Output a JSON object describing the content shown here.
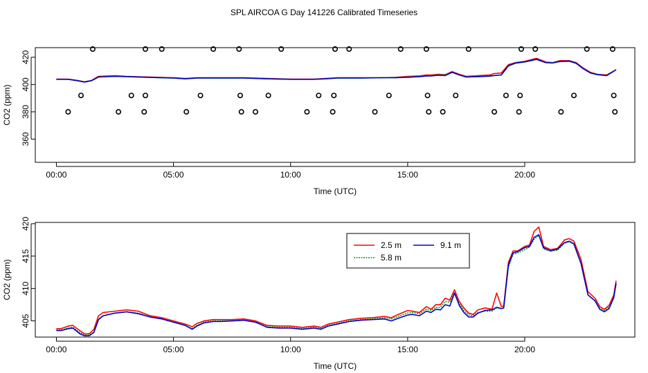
{
  "figure_title": "SPL AIRCOA G  Day 141226  Calibrated Timeseries",
  "chart_data": [
    {
      "type": "line",
      "xlabel": "Time (UTC)",
      "ylabel": "CO2 (ppm)",
      "xlim": [
        -0.9,
        24.7
      ],
      "ylim": [
        343,
        427
      ],
      "xticks": [
        0,
        5,
        10,
        15,
        20
      ],
      "xtick_labels": [
        "00:00",
        "05:00",
        "10:00",
        "15:00",
        "20:00"
      ],
      "yticks": [
        360,
        380,
        400,
        420
      ],
      "ytick_labels": [
        "360",
        "380",
        "400",
        "420"
      ],
      "grid": false,
      "series": [
        {
          "color": "#ff0000",
          "x": [
            0,
            0.5,
            0.9,
            1.2,
            1.5,
            1.8,
            2.5,
            3.0,
            4.0,
            5.0,
            5.5,
            6.0,
            7.0,
            8.0,
            9.0,
            10.0,
            10.5,
            11.0,
            11.5,
            12.0,
            13.0,
            14.0,
            14.5,
            15.0,
            15.5,
            15.8,
            16.0,
            16.3,
            16.6,
            16.9,
            17.2,
            17.5,
            18.0,
            18.5,
            18.7,
            19.0,
            19.3,
            19.6,
            20.0,
            20.5,
            20.9,
            21.2,
            21.5,
            21.9,
            22.2,
            22.5,
            22.8,
            23.1,
            23.5,
            23.9
          ],
          "values": [
            404,
            404,
            403,
            402,
            403,
            406,
            406.5,
            406,
            405.5,
            405,
            404.5,
            405,
            405,
            405,
            404.5,
            404,
            404,
            404,
            404.5,
            405,
            405,
            405,
            405.3,
            406,
            406.3,
            407,
            407,
            407.5,
            407.2,
            409.5,
            407.5,
            406,
            406.5,
            407,
            408,
            408.5,
            414.5,
            416,
            417,
            419.2,
            416.5,
            416,
            417.5,
            417.5,
            416,
            412,
            409,
            407.5,
            407,
            410.8
          ]
        },
        {
          "color": "#00cc00",
          "x": [
            0,
            0.5,
            0.9,
            1.2,
            1.5,
            1.8,
            2.5,
            3.0,
            4.0,
            5.0,
            5.5,
            6.0,
            7.0,
            8.0,
            9.0,
            10.0,
            10.5,
            11.0,
            11.5,
            12.0,
            13.0,
            14.0,
            14.5,
            15.0,
            15.5,
            15.8,
            16.0,
            16.3,
            16.6,
            16.9,
            17.2,
            17.5,
            18.0,
            18.5,
            18.7,
            19.0,
            19.3,
            19.6,
            20.0,
            20.5,
            20.9,
            21.2,
            21.5,
            21.9,
            22.2,
            22.5,
            22.8,
            23.1,
            23.5,
            23.9
          ],
          "values": [
            403.8,
            403.8,
            402.8,
            401.8,
            402.8,
            405.5,
            406,
            405.8,
            405.2,
            404.8,
            404.2,
            404.8,
            404.8,
            404.8,
            404.2,
            403.8,
            403.8,
            403.8,
            404.2,
            404.8,
            404.8,
            405,
            405,
            405.5,
            405.8,
            406.3,
            406.5,
            407,
            406.8,
            409,
            407,
            405.5,
            405.8,
            406,
            406.5,
            407,
            413.5,
            415.5,
            416.5,
            418.3,
            416,
            415.8,
            416.8,
            417,
            415.5,
            411.5,
            408.5,
            407.2,
            406.5,
            410.8
          ]
        },
        {
          "color": "#0000cc",
          "x": [
            0,
            0.5,
            0.9,
            1.2,
            1.5,
            1.8,
            2.5,
            3.0,
            4.0,
            5.0,
            5.5,
            6.0,
            7.0,
            8.0,
            9.0,
            10.0,
            10.5,
            11.0,
            11.5,
            12.0,
            13.0,
            14.0,
            14.5,
            15.0,
            15.5,
            15.8,
            16.0,
            16.3,
            16.6,
            16.9,
            17.2,
            17.5,
            18.0,
            18.5,
            18.7,
            19.0,
            19.3,
            19.6,
            20.0,
            20.5,
            20.9,
            21.2,
            21.5,
            21.9,
            22.2,
            22.5,
            22.8,
            23.1,
            23.5,
            23.9
          ],
          "values": [
            403.8,
            403.8,
            402.8,
            401.8,
            402.8,
            405.5,
            406,
            405.8,
            405.2,
            404.8,
            404.2,
            404.8,
            404.8,
            404.8,
            404.2,
            403.8,
            403.8,
            403.8,
            404.2,
            404.8,
            404.8,
            405,
            405,
            405.3,
            405.8,
            406.2,
            406.3,
            406.8,
            406.5,
            409,
            407,
            405.5,
            405.8,
            406.2,
            406.6,
            407,
            413.8,
            415.8,
            416.6,
            418.5,
            416,
            415.8,
            417,
            417.2,
            415.5,
            411.5,
            408.5,
            407.2,
            406.5,
            410.8
          ]
        }
      ],
      "points": {
        "x": [
          0.5,
          1.05,
          1.55,
          2.65,
          3.2,
          3.75,
          3.8,
          3.8,
          4.5,
          5.55,
          6.15,
          6.7,
          7.8,
          7.85,
          7.9,
          8.5,
          9.05,
          9.6,
          10.7,
          11.2,
          11.8,
          11.85,
          11.9,
          12.5,
          13.6,
          14.2,
          14.7,
          15.8,
          15.85,
          15.9,
          16.5,
          17.05,
          17.6,
          18.7,
          19.2,
          19.75,
          19.8,
          19.85,
          20.45,
          21.55,
          22.1,
          22.65,
          23.75,
          23.8,
          23.85
        ],
        "values": [
          380,
          392,
          426,
          380,
          392,
          380,
          392,
          426,
          426,
          380,
          392,
          426,
          426,
          392,
          380,
          380,
          392,
          426,
          380,
          392,
          380,
          392,
          426,
          426,
          380,
          392,
          426,
          426,
          392,
          380,
          380,
          392,
          426,
          380,
          392,
          380,
          392,
          426,
          426,
          380,
          392,
          426,
          426,
          392,
          380
        ]
      }
    },
    {
      "type": "line",
      "xlabel": "Time (UTC)",
      "ylabel": "CO2 (ppm)",
      "xlim": [
        -0.9,
        24.7
      ],
      "ylim": [
        402.5,
        420.2
      ],
      "xticks": [
        0,
        5,
        10,
        15,
        20
      ],
      "xtick_labels": [
        "00:00",
        "05:00",
        "10:00",
        "15:00",
        "20:00"
      ],
      "yticks": [
        405,
        410,
        415,
        420
      ],
      "ytick_labels": [
        "405",
        "410",
        "415",
        "420"
      ],
      "grid": false,
      "legend_position": "top-right",
      "series": [
        {
          "name": "2.5 m",
          "color": "#ff0000",
          "x": [
            0,
            0.2,
            0.5,
            0.7,
            1.0,
            1.2,
            1.4,
            1.6,
            1.8,
            2.0,
            2.5,
            3.0,
            3.5,
            4.0,
            4.5,
            5.0,
            5.5,
            5.8,
            6.0,
            6.3,
            6.7,
            7.0,
            7.5,
            8.0,
            8.5,
            9.0,
            9.5,
            10.0,
            10.5,
            11.0,
            11.3,
            11.6,
            12.0,
            12.5,
            13.0,
            13.5,
            14.0,
            14.3,
            14.6,
            15.0,
            15.2,
            15.5,
            15.8,
            16.0,
            16.2,
            16.4,
            16.6,
            16.8,
            17.0,
            17.2,
            17.4,
            17.6,
            17.8,
            18.0,
            18.3,
            18.6,
            18.8,
            19.0,
            19.1,
            19.3,
            19.5,
            19.7,
            20.0,
            20.2,
            20.4,
            20.6,
            20.8,
            21.1,
            21.4,
            21.7,
            21.9,
            22.1,
            22.4,
            22.7,
            23.0,
            23.2,
            23.4,
            23.6,
            23.8,
            23.9
          ],
          "values": [
            403.8,
            403.8,
            404.2,
            404.3,
            403.5,
            403,
            403,
            403.7,
            405.8,
            406.3,
            406.5,
            406.7,
            406.5,
            405.8,
            405.5,
            405,
            404.5,
            404.1,
            404.6,
            405,
            405.2,
            405.2,
            405.2,
            405.3,
            405,
            404.3,
            404.2,
            404.2,
            404,
            404.2,
            404,
            404.5,
            404.8,
            405.2,
            405.4,
            405.5,
            405.7,
            405.5,
            406,
            406.6,
            406.5,
            406.3,
            407.2,
            406.8,
            407.5,
            407.5,
            408.5,
            408.2,
            409.8,
            408,
            407,
            406.2,
            406,
            406.7,
            407,
            406.8,
            409.3,
            407.2,
            407.3,
            414,
            415.8,
            415.8,
            416.5,
            416.7,
            418.8,
            419.5,
            416.5,
            416,
            416.2,
            417.5,
            417.7,
            417.3,
            414.5,
            409.5,
            408.5,
            407.2,
            406.8,
            407.4,
            409,
            411.2
          ]
        },
        {
          "name": "5.8 m",
          "color": "#009900",
          "dashed": true,
          "x": [
            0,
            0.2,
            0.5,
            0.7,
            1.0,
            1.2,
            1.4,
            1.6,
            1.8,
            2.0,
            2.5,
            3.0,
            3.5,
            4.0,
            4.5,
            5.0,
            5.5,
            5.8,
            6.0,
            6.3,
            6.7,
            7.0,
            7.5,
            8.0,
            8.5,
            9.0,
            9.5,
            10.0,
            10.5,
            11.0,
            11.3,
            11.6,
            12.0,
            12.5,
            13.0,
            13.5,
            14.0,
            14.3,
            14.6,
            15.0,
            15.2,
            15.5,
            15.8,
            16.0,
            16.2,
            16.4,
            16.6,
            16.8,
            17.0,
            17.2,
            17.4,
            17.6,
            17.8,
            18.0,
            18.3,
            18.6,
            18.8,
            19.0,
            19.1,
            19.3,
            19.5,
            19.7,
            20.0,
            20.2,
            20.4,
            20.6,
            20.8,
            21.1,
            21.4,
            21.7,
            21.9,
            22.1,
            22.4,
            22.7,
            23.0,
            23.2,
            23.4,
            23.6,
            23.8,
            23.9
          ],
          "values": [
            403.6,
            403.6,
            403.9,
            404,
            403.2,
            402.8,
            402.8,
            403.3,
            405.3,
            405.8,
            406.2,
            406.4,
            406.2,
            405.6,
            405.3,
            404.8,
            404.3,
            403.8,
            404.3,
            404.8,
            405,
            405,
            405,
            405.1,
            404.8,
            404.1,
            404,
            404,
            403.8,
            404,
            403.8,
            404.3,
            404.6,
            405,
            405.2,
            405.3,
            405.5,
            405.3,
            405.7,
            406.2,
            406.3,
            406.1,
            406.8,
            406.6,
            407.1,
            407.1,
            408,
            407.9,
            409.3,
            407.7,
            406.6,
            405.9,
            405.8,
            406.3,
            406.5,
            406.5,
            407,
            406.9,
            407,
            413.2,
            415.3,
            415.5,
            416,
            416.4,
            417.6,
            418.2,
            416.1,
            415.8,
            415.9,
            417,
            417.2,
            416.8,
            413.8,
            409,
            408.1,
            406.9,
            406.6,
            407.1,
            408.7,
            410.8
          ]
        },
        {
          "name": "9.1 m",
          "color": "#0000cc",
          "x": [
            0,
            0.2,
            0.5,
            0.7,
            1.0,
            1.2,
            1.4,
            1.6,
            1.8,
            2.0,
            2.5,
            3.0,
            3.5,
            4.0,
            4.5,
            5.0,
            5.5,
            5.8,
            6.0,
            6.3,
            6.7,
            7.0,
            7.5,
            8.0,
            8.5,
            9.0,
            9.5,
            10.0,
            10.5,
            11.0,
            11.3,
            11.6,
            12.0,
            12.5,
            13.0,
            13.5,
            14.0,
            14.3,
            14.6,
            15.0,
            15.2,
            15.5,
            15.8,
            16.0,
            16.2,
            16.4,
            16.6,
            16.8,
            17.0,
            17.2,
            17.4,
            17.6,
            17.8,
            18.0,
            18.3,
            18.6,
            18.8,
            19.0,
            19.1,
            19.3,
            19.5,
            19.7,
            20.0,
            20.2,
            20.4,
            20.6,
            20.8,
            21.1,
            21.4,
            21.7,
            21.9,
            22.1,
            22.4,
            22.7,
            23.0,
            23.2,
            23.4,
            23.6,
            23.8,
            23.9
          ],
          "values": [
            403.5,
            403.5,
            403.8,
            403.9,
            403,
            402.7,
            402.7,
            403.2,
            405.2,
            405.8,
            406.2,
            406.4,
            406.1,
            405.6,
            405.3,
            404.8,
            404.3,
            403.7,
            404.2,
            404.7,
            404.9,
            404.9,
            405,
            405.1,
            404.8,
            404,
            403.9,
            403.9,
            403.7,
            403.9,
            403.7,
            404.2,
            404.5,
            404.9,
            405.1,
            405.2,
            405.3,
            405,
            405.4,
            405.9,
            406,
            405.8,
            406.5,
            406.3,
            406.8,
            406.7,
            407.5,
            407.3,
            409.3,
            407.4,
            406.3,
            405.6,
            405.6,
            406.2,
            406.6,
            406.7,
            407.1,
            406.9,
            407,
            413.6,
            415.5,
            415.7,
            416.3,
            416.5,
            417.9,
            418.3,
            416.3,
            415.8,
            416.1,
            417.1,
            417.3,
            416.9,
            413.9,
            409,
            408.1,
            406.8,
            406.4,
            406.9,
            408.6,
            410.8
          ]
        }
      ]
    }
  ]
}
